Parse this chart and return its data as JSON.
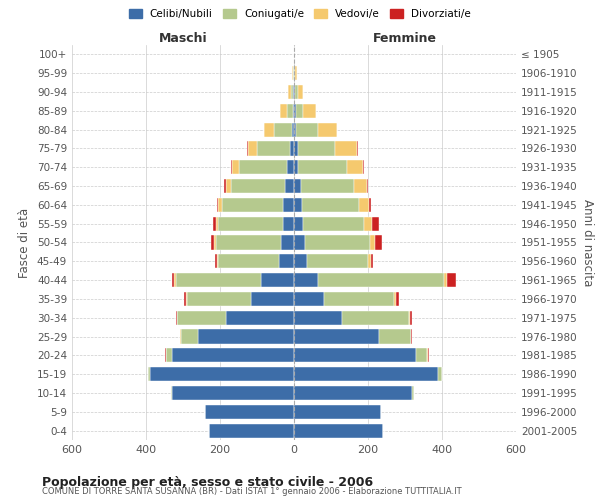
{
  "age_groups": [
    "0-4",
    "5-9",
    "10-14",
    "15-19",
    "20-24",
    "25-29",
    "30-34",
    "35-39",
    "40-44",
    "45-49",
    "50-54",
    "55-59",
    "60-64",
    "65-69",
    "70-74",
    "75-79",
    "80-84",
    "85-89",
    "90-94",
    "95-99",
    "100+"
  ],
  "birth_years": [
    "2001-2005",
    "1996-2000",
    "1991-1995",
    "1986-1990",
    "1981-1985",
    "1976-1980",
    "1971-1975",
    "1966-1970",
    "1961-1965",
    "1956-1960",
    "1951-1955",
    "1946-1950",
    "1941-1945",
    "1936-1940",
    "1931-1935",
    "1926-1930",
    "1921-1925",
    "1916-1920",
    "1911-1915",
    "1906-1910",
    "≤ 1905"
  ],
  "colors": {
    "celibi": "#3d6da8",
    "coniugati": "#b5c98e",
    "vedovi": "#f5c96e",
    "divorziati": "#cc2222"
  },
  "maschi": {
    "celibi": [
      230,
      240,
      330,
      390,
      330,
      260,
      185,
      115,
      90,
      40,
      35,
      30,
      30,
      25,
      18,
      10,
      5,
      3,
      2,
      1,
      0
    ],
    "coniugati": [
      0,
      0,
      2,
      5,
      15,
      45,
      130,
      175,
      230,
      165,
      175,
      175,
      165,
      145,
      130,
      90,
      50,
      15,
      5,
      2,
      0
    ],
    "vedovi": [
      0,
      0,
      0,
      0,
      2,
      2,
      2,
      3,
      3,
      3,
      5,
      5,
      10,
      15,
      20,
      25,
      25,
      20,
      10,
      3,
      0
    ],
    "divorziati": [
      0,
      0,
      0,
      0,
      2,
      2,
      3,
      5,
      8,
      5,
      8,
      8,
      3,
      3,
      3,
      3,
      0,
      0,
      0,
      0,
      0
    ]
  },
  "femmine": {
    "celibi": [
      240,
      235,
      320,
      390,
      330,
      230,
      130,
      80,
      65,
      35,
      30,
      25,
      22,
      18,
      12,
      10,
      5,
      5,
      2,
      1,
      0
    ],
    "coniugati": [
      0,
      0,
      3,
      10,
      30,
      85,
      180,
      190,
      340,
      165,
      175,
      165,
      155,
      145,
      130,
      100,
      60,
      20,
      8,
      2,
      0
    ],
    "vedovi": [
      0,
      0,
      0,
      0,
      2,
      2,
      3,
      5,
      8,
      8,
      15,
      20,
      25,
      35,
      45,
      60,
      50,
      35,
      15,
      5,
      1
    ],
    "divorziati": [
      0,
      0,
      0,
      0,
      2,
      2,
      5,
      8,
      25,
      5,
      18,
      20,
      5,
      3,
      3,
      3,
      0,
      0,
      0,
      0,
      0
    ]
  },
  "title": "Popolazione per età, sesso e stato civile - 2006",
  "subtitle": "COMUNE DI TORRE SANTA SUSANNA (BR) - Dati ISTAT 1° gennaio 2006 - Elaborazione TUTTITALIA.IT",
  "xlabel_left": "Maschi",
  "xlabel_right": "Femmine",
  "ylabel_left": "Fasce di età",
  "ylabel_right": "Anni di nascita",
  "xlim": 600,
  "legend_labels": [
    "Celibi/Nubili",
    "Coniugati/e",
    "Vedovi/e",
    "Divorziati/e"
  ],
  "bg_color": "#ffffff",
  "grid_color": "#cccccc"
}
